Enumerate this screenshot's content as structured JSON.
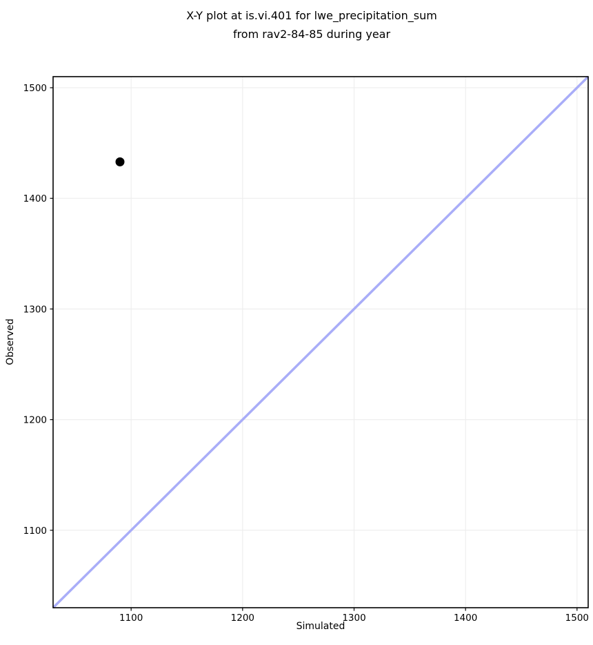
{
  "chart_data": {
    "type": "scatter",
    "title": "X-Y plot at is.vi.401 for lwe_precipitation_sum\nfrom rav2-84-85 during year",
    "xlabel": "Simulated",
    "ylabel": "Observed",
    "xlim": [
      1030,
      1510
    ],
    "ylim": [
      1030,
      1510
    ],
    "xticks": [
      1100,
      1200,
      1300,
      1400,
      1500
    ],
    "yticks": [
      1100,
      1200,
      1300,
      1400,
      1500
    ],
    "grid": true,
    "legend": false,
    "points": [
      {
        "x": 1090,
        "y": 1433,
        "color": "#000000"
      }
    ],
    "identity_line": {
      "x1": 1030,
      "y1": 1030,
      "x2": 1510,
      "y2": 1510,
      "color": "#a9adf8",
      "width": 3.5
    },
    "colors": {
      "background": "#ffffff",
      "grid": "#ededed",
      "spine": "#000000",
      "point": "#000000",
      "line": "#a9adf8"
    }
  }
}
